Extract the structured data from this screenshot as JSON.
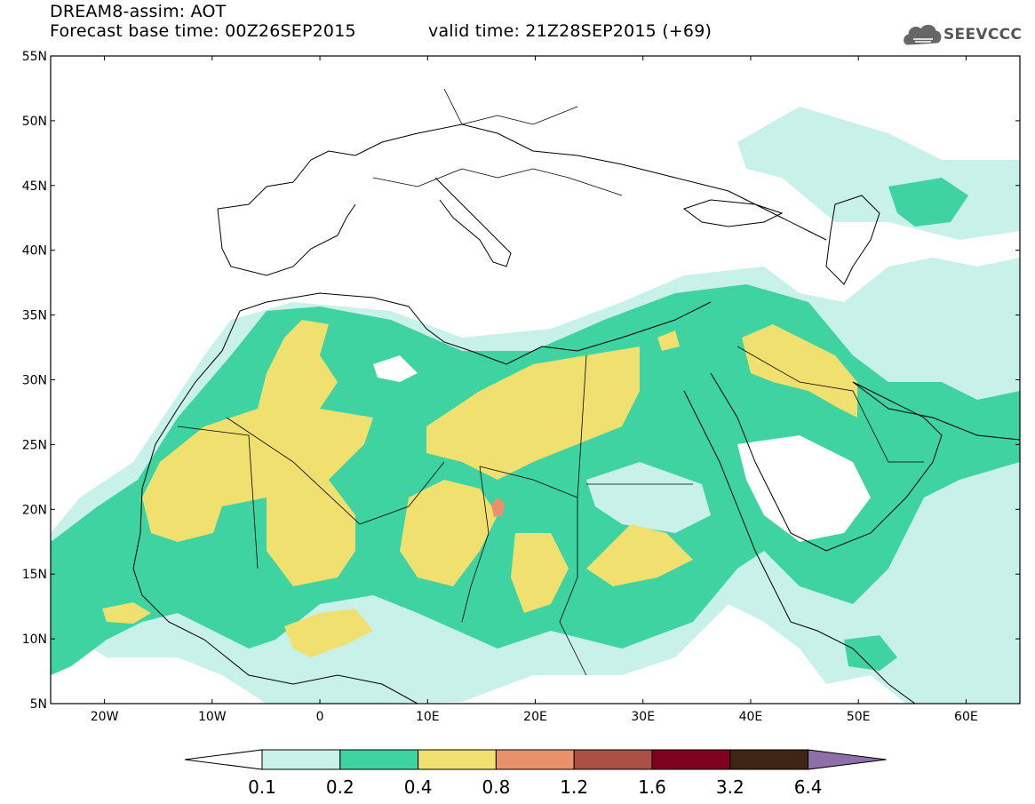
{
  "header": {
    "title": "DREAM8-assim: AOT",
    "base_time": "Forecast base time: 00Z26SEP2015",
    "valid_time": "valid time: 21Z28SEP2015 (+69)"
  },
  "logo": {
    "text": "SEEVCCC",
    "icon": "cloud-icon"
  },
  "map": {
    "lat_labels": [
      "55N",
      "50N",
      "45N",
      "40N",
      "35N",
      "30N",
      "25N",
      "20N",
      "15N",
      "10N",
      "5N"
    ],
    "lon_labels": [
      "20W",
      "10W",
      "0",
      "10E",
      "20E",
      "30E",
      "40E",
      "50E",
      "60E"
    ],
    "lon_range": [
      -25,
      65
    ],
    "lat_range": [
      5,
      55
    ]
  },
  "colorbar": {
    "labels": [
      "0.1",
      "0.2",
      "0.4",
      "0.8",
      "1.2",
      "1.6",
      "3.2",
      "6.4"
    ],
    "colors": [
      "#c8f1ea",
      "#3ed3a0",
      "#f0e070",
      "#e8916a",
      "#a94f43",
      "#800020",
      "#3d2616",
      "#8f6fa8"
    ],
    "under_color": "#ffffff",
    "over_color": "#8f6fa8"
  },
  "colors": {
    "level_0.1": "#c8f1ea",
    "level_0.2": "#3ed3a0",
    "level_0.4": "#f0e070",
    "level_0.8": "#e8916a"
  }
}
